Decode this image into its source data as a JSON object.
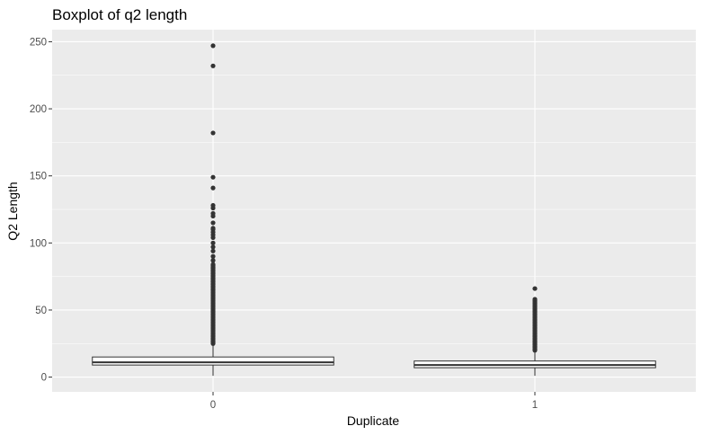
{
  "chart_data": {
    "type": "boxplot",
    "title": "Boxplot of q2 length",
    "xlabel": "Duplicate",
    "ylabel": "Q2 Length",
    "categories": [
      "0",
      "1"
    ],
    "ylim": [
      -11,
      259
    ],
    "yticks": [
      0,
      50,
      100,
      150,
      200,
      250
    ],
    "grid": true,
    "colors": {
      "panel": "#ebebeb",
      "grid_major": "#ffffff",
      "box_fill": "#ffffff",
      "box_line": "#333333",
      "outlier": "#333333"
    },
    "boxes": [
      {
        "category": "0",
        "whisker_low": 1,
        "q1": 9,
        "median": 11,
        "q3": 15,
        "whisker_high": 24,
        "outliers": [
          25,
          26,
          27,
          28,
          29,
          30,
          31,
          32,
          33,
          34,
          35,
          36,
          37,
          38,
          39,
          40,
          41,
          42,
          43,
          44,
          45,
          46,
          47,
          48,
          49,
          50,
          51,
          52,
          53,
          54,
          55,
          56,
          57,
          58,
          59,
          60,
          61,
          62,
          63,
          64,
          65,
          66,
          67,
          68,
          69,
          70,
          71,
          72,
          73,
          74,
          75,
          76,
          77,
          78,
          79,
          80,
          81,
          82,
          83,
          84,
          87,
          90,
          94,
          97,
          100,
          104,
          106,
          108,
          110,
          111,
          115,
          120,
          122,
          126,
          128,
          141,
          149,
          182,
          232,
          247
        ]
      },
      {
        "category": "1",
        "whisker_low": 1,
        "q1": 7,
        "median": 9,
        "q3": 12,
        "whisker_high": 19,
        "outliers": [
          20,
          21,
          22,
          23,
          24,
          25,
          26,
          27,
          28,
          29,
          30,
          31,
          32,
          33,
          34,
          35,
          36,
          37,
          38,
          39,
          40,
          41,
          42,
          43,
          44,
          45,
          46,
          47,
          48,
          49,
          50,
          51,
          52,
          53,
          54,
          55,
          56,
          57,
          58,
          66
        ]
      }
    ]
  }
}
